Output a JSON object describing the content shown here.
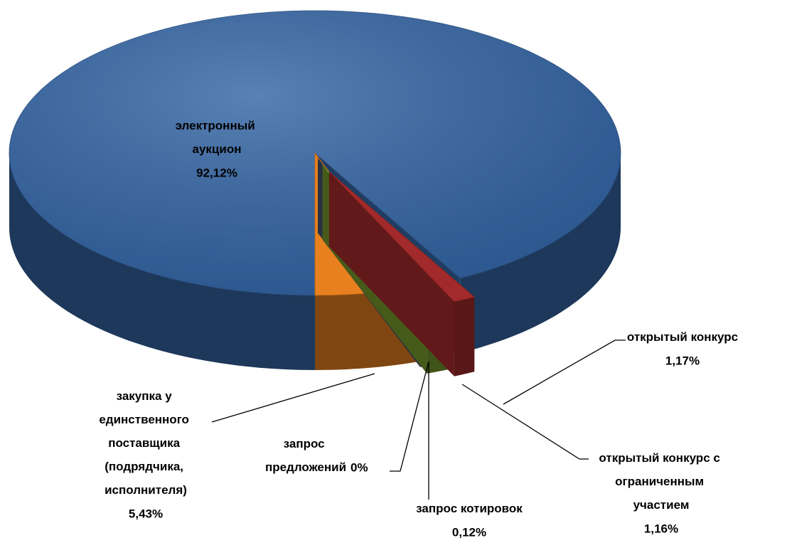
{
  "chart_data": {
    "type": "pie3d",
    "categories": [
      "электронный аукцион",
      "открытый конкурс",
      "открытый конкурс с ограниченным участием",
      "запрос котировок",
      "запрос предложений",
      "закупка у единственного поставщика (подрядчика, исполнителя)"
    ],
    "values": [
      92.12,
      1.17,
      1.16,
      0.12,
      0,
      5.43
    ],
    "value_labels": [
      "92,12%",
      "1,17%",
      "1,16%",
      "0,12%",
      "0%",
      "5,43%"
    ],
    "colors": [
      "#3465a4",
      "#a32a2a",
      "#74962c",
      "#3f5470",
      "#5a6f8f",
      "#e8801f"
    ]
  }
}
